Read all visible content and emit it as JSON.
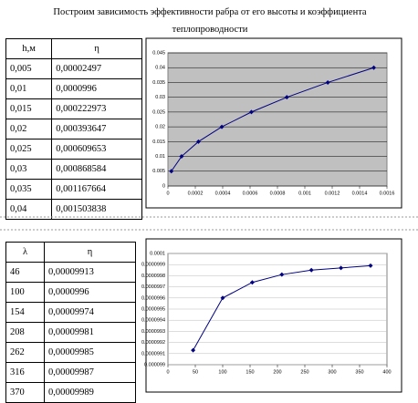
{
  "title": "Построим зависимость эффективности рабра от его высоты и коэффициента теплопроводности",
  "table1": {
    "header": [
      "h,м",
      "η"
    ],
    "rows": [
      [
        "0,005",
        "0,00002497"
      ],
      [
        "0,01",
        "0,0000996"
      ],
      [
        "0,015",
        "0,000222973"
      ],
      [
        "0,02",
        "0,000393647"
      ],
      [
        "0,025",
        "0,000609653"
      ],
      [
        "0,03",
        "0,000868584"
      ],
      [
        "0,035",
        "0,001167664"
      ],
      [
        "0,04",
        "0,001503838"
      ]
    ]
  },
  "table2": {
    "header": [
      "λ",
      "η"
    ],
    "rows": [
      [
        "46",
        "0,00009913"
      ],
      [
        "100",
        "0,0000996"
      ],
      [
        "154",
        "0,00009974"
      ],
      [
        "208",
        "0,00009981"
      ],
      [
        "262",
        "0,00009985"
      ],
      [
        "316",
        "0,00009987"
      ],
      [
        "370",
        "0,00009989"
      ]
    ]
  },
  "chart_data": [
    {
      "type": "line",
      "color": "#000080",
      "grid": true,
      "x": [
        2.497e-05,
        9.96e-05,
        0.000222973,
        0.000393647,
        0.000609653,
        0.000868584,
        0.001167664,
        0.001503838
      ],
      "values": [
        0.005,
        0.01,
        0.015,
        0.02,
        0.025,
        0.03,
        0.035,
        0.04
      ],
      "xlim": [
        0,
        0.0016
      ],
      "xticks": [
        0,
        0.0002,
        0.0004,
        0.0006,
        0.0008,
        0.001,
        0.0012,
        0.0014,
        0.0016
      ],
      "ylim": [
        0,
        0.045
      ],
      "yticks": [
        0,
        0.005,
        0.01,
        0.015,
        0.02,
        0.025,
        0.03,
        0.035,
        0.04,
        0.045
      ]
    },
    {
      "type": "line",
      "color": "#000080",
      "grid": true,
      "x": [
        46,
        100,
        154,
        208,
        262,
        316,
        370
      ],
      "values": [
        9.913e-05,
        9.96e-05,
        9.974e-05,
        9.981e-05,
        9.985e-05,
        9.987e-05,
        9.989e-05
      ],
      "xlim": [
        0,
        400
      ],
      "xticks": [
        0,
        50,
        100,
        150,
        200,
        250,
        300,
        350,
        400
      ],
      "ylim": [
        9.9e-05,
        0.0001
      ],
      "yticks": [
        9.9e-05,
        9.91e-05,
        9.92e-05,
        9.93e-05,
        9.94e-05,
        9.95e-05,
        9.96e-05,
        9.97e-05,
        9.98e-05,
        9.99e-05,
        0.0001
      ]
    }
  ]
}
